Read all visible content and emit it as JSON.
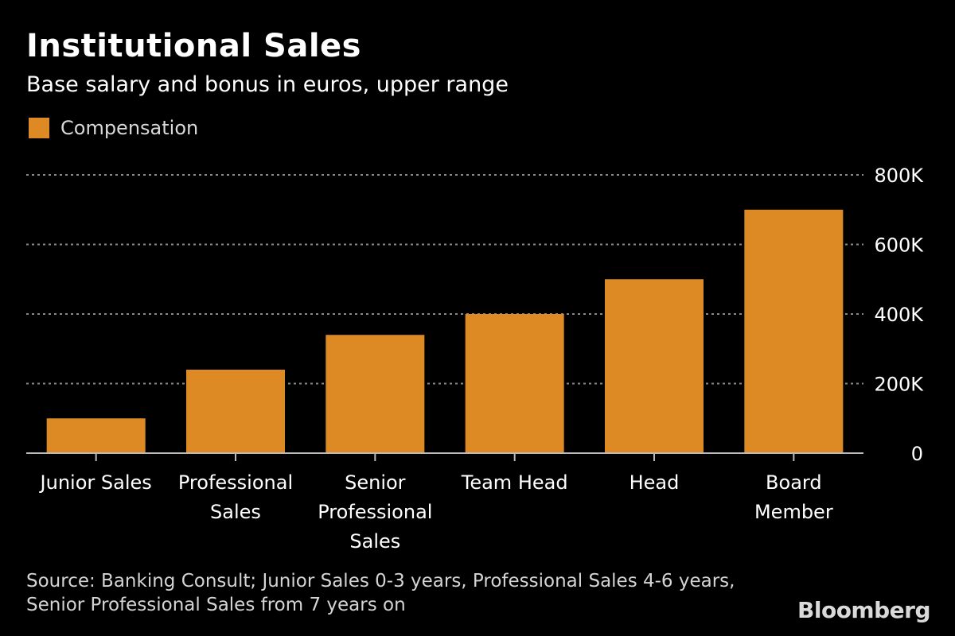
{
  "header": {
    "title": "Institutional Sales",
    "subtitle": "Base salary and bonus in euros, upper range"
  },
  "colors": {
    "bar": "#dd8a25",
    "grid": "#8a8a8a",
    "axis": "#bbbbbb",
    "text": "#ffffff",
    "muted": "#d4d4d4"
  },
  "chart_data": {
    "type": "bar",
    "title": "Institutional Sales",
    "subtitle": "Base salary and bonus in euros, upper range",
    "xlabel": "",
    "ylabel": "",
    "categories": [
      [
        "Junior Sales"
      ],
      [
        "Professional",
        "Sales"
      ],
      [
        "Senior",
        "Professional",
        "Sales"
      ],
      [
        "Team Head"
      ],
      [
        "Head"
      ],
      [
        "Board",
        "Member"
      ]
    ],
    "series": [
      {
        "name": "Compensation",
        "values": [
          100000,
          240000,
          340000,
          400000,
          500000,
          700000
        ]
      }
    ],
    "ylim": [
      0,
      800000
    ],
    "yticks": [
      0,
      200000,
      400000,
      600000,
      800000
    ],
    "ytick_labels": [
      "0",
      "200K",
      "400K",
      "600K",
      "800K"
    ],
    "y_axis_side": "right",
    "grid": true,
    "legend": "top-left"
  },
  "footer": {
    "source": "Source: Banking Consult; Junior Sales 0-3 years, Professional Sales 4-6 years, Senior Professional Sales from 7 years on",
    "logo": "Bloomberg"
  }
}
